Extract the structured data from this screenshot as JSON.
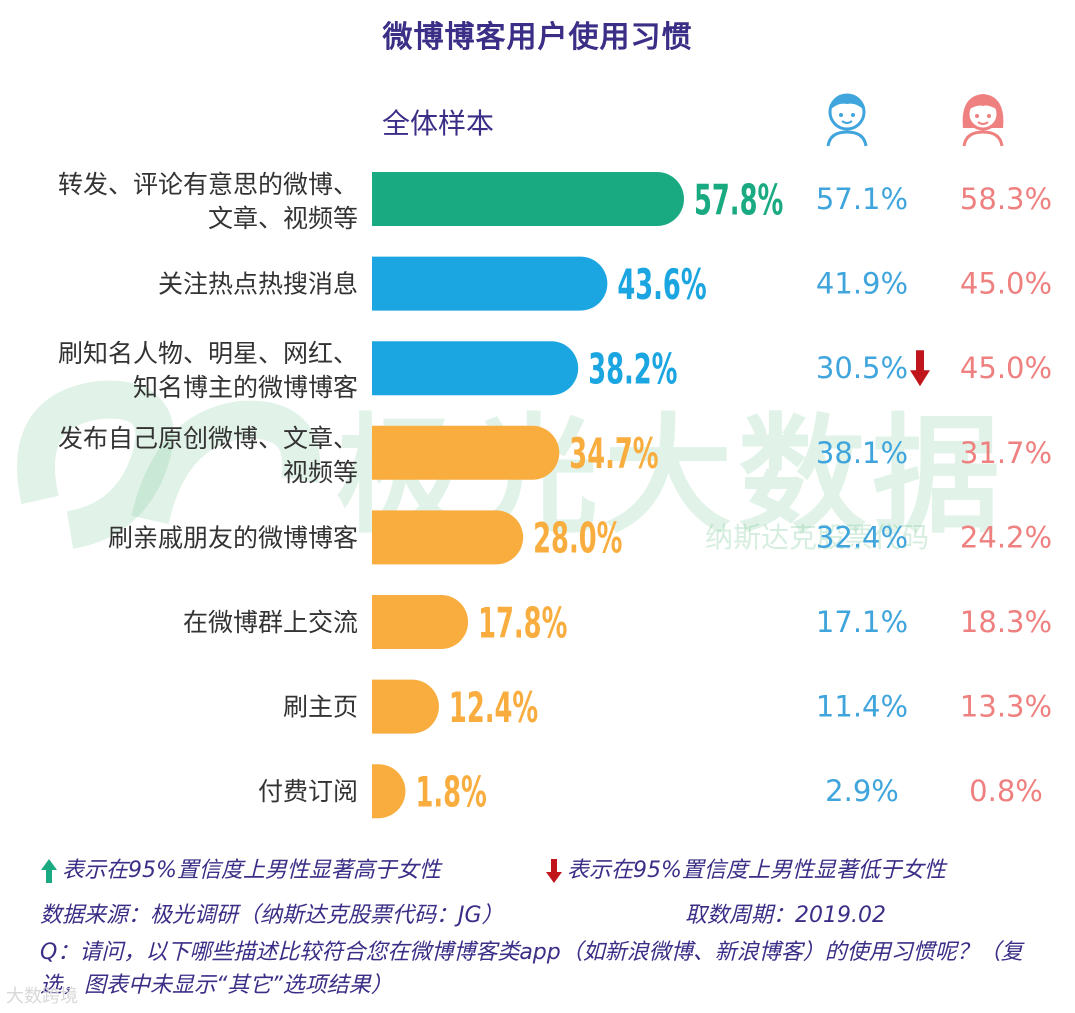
{
  "title": "微博博客用户使用习惯",
  "sample_label": "全体样本",
  "watermark": {
    "main": "极光大数据",
    "sub": "纳斯达克股票代码"
  },
  "colors": {
    "title": "#3a2e86",
    "green": "#1aaa82",
    "blue": "#1ba6e1",
    "orange": "#f8ad3e",
    "male": "#3fa5dc",
    "female": "#ef8080",
    "down_arrow": "#c0161b",
    "up_arrow": "#1aaa82"
  },
  "icons": {
    "male": "boy-face-icon",
    "female": "girl-face-icon",
    "up": "arrow-up-icon",
    "down": "arrow-down-icon"
  },
  "chart_data": {
    "type": "bar",
    "orientation": "horizontal",
    "categories": [
      [
        "转发、评论有意思的微博、",
        "文章、视频等"
      ],
      [
        "关注热点热搜消息"
      ],
      [
        "刷知名人物、明星、网红、",
        "知名博主的微博博客"
      ],
      [
        "发布自己原创微博、文章、",
        "视频等"
      ],
      [
        "刷亲戚朋友的微博博客"
      ],
      [
        "在微博群上交流"
      ],
      [
        "刷主页"
      ],
      [
        "付费订阅"
      ]
    ],
    "values": [
      57.8,
      43.6,
      38.2,
      34.7,
      28.0,
      17.8,
      12.4,
      1.8
    ],
    "value_labels": [
      "57.8%",
      "43.6%",
      "38.2%",
      "34.7%",
      "28.0%",
      "17.8%",
      "12.4%",
      "1.8%"
    ],
    "bar_colors": [
      "#1aaa82",
      "#1ba6e1",
      "#1ba6e1",
      "#f8ad3e",
      "#f8ad3e",
      "#f8ad3e",
      "#f8ad3e",
      "#f8ad3e"
    ],
    "series": [
      {
        "name": "male",
        "labels": [
          "57.1%",
          "41.9%",
          "30.5%",
          "38.1%",
          "32.4%",
          "17.1%",
          "11.4%",
          "2.9%"
        ]
      },
      {
        "name": "female",
        "labels": [
          "58.3%",
          "45.0%",
          "45.0%",
          "31.7%",
          "24.2%",
          "18.3%",
          "13.3%",
          "0.8%"
        ]
      }
    ],
    "significance_markers": [
      null,
      null,
      "down",
      null,
      null,
      null,
      null,
      null
    ],
    "xlim": [
      0,
      57.8
    ],
    "grid": false
  },
  "legend": {
    "up_text": "表示在95%置信度上男性显著高于女性",
    "down_text": "表示在95%置信度上男性显著低于女性"
  },
  "source": "数据来源：极光调研（纳斯达克股票代码：JG）",
  "period": "取数周期：2019.02",
  "question": "Q：请问，以下哪些描述比较符合您在微博博客类app（如新浪微博、新浪博客）的使用习惯呢？（复选，图表中未显示“其它”选项结果）",
  "footer_brand": "大数跨境"
}
